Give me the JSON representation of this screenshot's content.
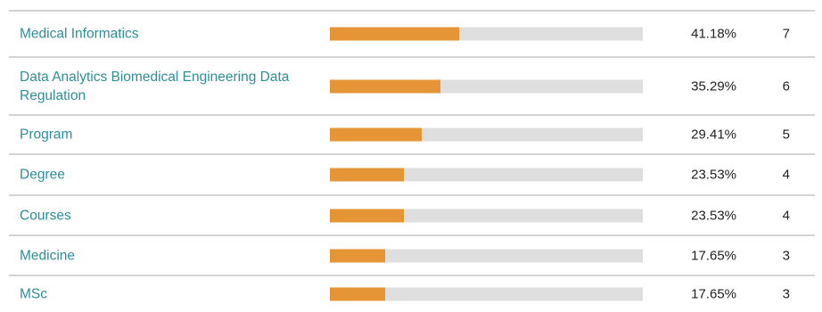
{
  "colors": {
    "label_link": "#2e8f96",
    "bar_fill": "#e59536",
    "bar_track": "#dedede",
    "divider": "#d3d3d3"
  },
  "rows": [
    {
      "label": "Medical Informatics",
      "percent": "41.18%",
      "fraction": 0.4118,
      "count": "7"
    },
    {
      "label": "Data Analytics Biomedical Engineering Data Regulation",
      "percent": "35.29%",
      "fraction": 0.3529,
      "count": "6"
    },
    {
      "label": "Program",
      "percent": "29.41%",
      "fraction": 0.2941,
      "count": "5"
    },
    {
      "label": "Degree",
      "percent": "23.53%",
      "fraction": 0.2353,
      "count": "4"
    },
    {
      "label": "Courses",
      "percent": "23.53%",
      "fraction": 0.2353,
      "count": "4"
    },
    {
      "label": "Medicine",
      "percent": "17.65%",
      "fraction": 0.1765,
      "count": "3"
    },
    {
      "label": "MSc",
      "percent": "17.65%",
      "fraction": 0.1765,
      "count": "3"
    }
  ]
}
